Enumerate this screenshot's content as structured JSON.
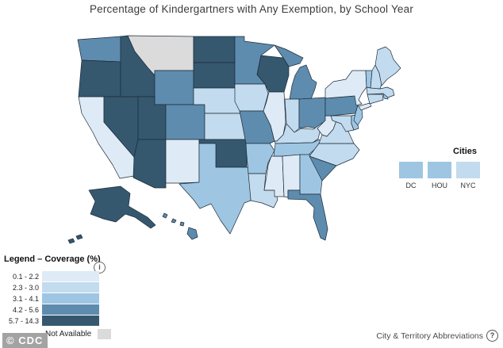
{
  "title": "Percentage of Kindergartners with Any Exemption, by School Year",
  "legend": {
    "title": "Legend – Coverage (%)",
    "info_icon": "i",
    "classes": [
      {
        "label": "0.1 - 2.2",
        "color": "#DEEBF6"
      },
      {
        "label": "2.3 - 3.0",
        "color": "#C3DBEE"
      },
      {
        "label": "3.1 - 4.1",
        "color": "#9EC6E3"
      },
      {
        "label": "4.2 - 5.6",
        "color": "#5E8CAE"
      },
      {
        "label": "5.7 - 14.3",
        "color": "#35586F"
      }
    ],
    "not_available": {
      "label": "Not Available",
      "color": "#DBDBDB"
    }
  },
  "cities": {
    "title": "Cities",
    "items": [
      {
        "label": "DC",
        "class_index": 2
      },
      {
        "label": "HOU",
        "class_index": 2
      },
      {
        "label": "NYC",
        "class_index": 1
      }
    ]
  },
  "footer": {
    "logo": "© CDC",
    "abbreviations_label": "City & Territory Abbreviations",
    "help_icon": "?"
  },
  "map": {
    "border_color": "#1c2b39",
    "states": [
      {
        "abbr": "WA",
        "name": "Washington",
        "class_index": 3
      },
      {
        "abbr": "OR",
        "name": "Oregon",
        "class_index": 4
      },
      {
        "abbr": "CA",
        "name": "California",
        "class_index": 0
      },
      {
        "abbr": "NV",
        "name": "Nevada",
        "class_index": 4
      },
      {
        "abbr": "ID",
        "name": "Idaho",
        "class_index": 4
      },
      {
        "abbr": "MT",
        "name": "Montana",
        "class_index": -1
      },
      {
        "abbr": "WY",
        "name": "Wyoming",
        "class_index": 3
      },
      {
        "abbr": "UT",
        "name": "Utah",
        "class_index": 4
      },
      {
        "abbr": "CO",
        "name": "Colorado",
        "class_index": 3
      },
      {
        "abbr": "AZ",
        "name": "Arizona",
        "class_index": 4
      },
      {
        "abbr": "NM",
        "name": "New Mexico",
        "class_index": 0
      },
      {
        "abbr": "ND",
        "name": "North Dakota",
        "class_index": 4
      },
      {
        "abbr": "SD",
        "name": "South Dakota",
        "class_index": 4
      },
      {
        "abbr": "NE",
        "name": "Nebraska",
        "class_index": 1
      },
      {
        "abbr": "KS",
        "name": "Kansas",
        "class_index": 1
      },
      {
        "abbr": "OK",
        "name": "Oklahoma",
        "class_index": 4
      },
      {
        "abbr": "TX",
        "name": "Texas",
        "class_index": 2
      },
      {
        "abbr": "MN",
        "name": "Minnesota",
        "class_index": 3
      },
      {
        "abbr": "IA",
        "name": "Iowa",
        "class_index": 1
      },
      {
        "abbr": "MO",
        "name": "Missouri",
        "class_index": 3
      },
      {
        "abbr": "AR",
        "name": "Arkansas",
        "class_index": 2
      },
      {
        "abbr": "LA",
        "name": "Louisiana",
        "class_index": 1
      },
      {
        "abbr": "WI",
        "name": "Wisconsin",
        "class_index": 4
      },
      {
        "abbr": "IL",
        "name": "Illinois",
        "class_index": 0
      },
      {
        "abbr": "MS",
        "name": "Mississippi",
        "class_index": 0
      },
      {
        "abbr": "MI",
        "name": "Michigan",
        "class_index": 3
      },
      {
        "abbr": "IN",
        "name": "Indiana",
        "class_index": 1
      },
      {
        "abbr": "OH",
        "name": "Ohio",
        "class_index": 3
      },
      {
        "abbr": "KY",
        "name": "Kentucky",
        "class_index": 1
      },
      {
        "abbr": "TN",
        "name": "Tennessee",
        "class_index": 2
      },
      {
        "abbr": "AL",
        "name": "Alabama",
        "class_index": 0
      },
      {
        "abbr": "GA",
        "name": "Georgia",
        "class_index": 2
      },
      {
        "abbr": "FL",
        "name": "Florida",
        "class_index": 3
      },
      {
        "abbr": "SC",
        "name": "South Carolina",
        "class_index": 3
      },
      {
        "abbr": "NC",
        "name": "North Carolina",
        "class_index": 1
      },
      {
        "abbr": "VA",
        "name": "Virginia",
        "class_index": 1
      },
      {
        "abbr": "WV",
        "name": "West Virginia",
        "class_index": 0
      },
      {
        "abbr": "MD",
        "name": "Maryland",
        "class_index": 1
      },
      {
        "abbr": "DE",
        "name": "Delaware",
        "class_index": 2
      },
      {
        "abbr": "PA",
        "name": "Pennsylvania",
        "class_index": 3
      },
      {
        "abbr": "NJ",
        "name": "New Jersey",
        "class_index": 2
      },
      {
        "abbr": "NY",
        "name": "New York",
        "class_index": 0
      },
      {
        "abbr": "CT",
        "name": "Connecticut",
        "class_index": 1
      },
      {
        "abbr": "RI",
        "name": "Rhode Island",
        "class_index": 2
      },
      {
        "abbr": "MA",
        "name": "Massachusetts",
        "class_index": 1
      },
      {
        "abbr": "VT",
        "name": "Vermont",
        "class_index": 2
      },
      {
        "abbr": "NH",
        "name": "New Hampshire",
        "class_index": 1
      },
      {
        "abbr": "ME",
        "name": "Maine",
        "class_index": 1
      },
      {
        "abbr": "AK",
        "name": "Alaska",
        "class_index": 4
      },
      {
        "abbr": "HI",
        "name": "Hawaii",
        "class_index": 3
      }
    ]
  }
}
